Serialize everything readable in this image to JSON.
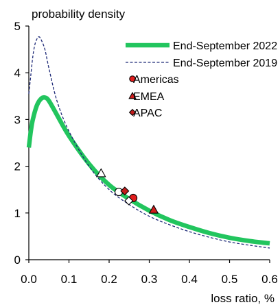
{
  "colors": {
    "series_2022": "#22c55e",
    "series_2019": "#1e2a78",
    "americas": "#e11d1d",
    "emea": "#d01c1c",
    "apac": "#c21c1c",
    "hollow": "#ffffff",
    "axis": "#000000"
  },
  "chart_data": {
    "type": "line",
    "title": "",
    "ylabel": "probability density",
    "xlabel": "loss ratio, %",
    "xlim": [
      0.0,
      0.6
    ],
    "ylim": [
      0,
      5
    ],
    "xticks": [
      0.0,
      0.1,
      0.2,
      0.3,
      0.4,
      0.5,
      0.6
    ],
    "xtick_labels": [
      "0.0",
      "0.1",
      "0.2",
      "0.3",
      "0.4",
      "0.5",
      "0.6"
    ],
    "yticks": [
      0,
      1,
      2,
      3,
      4,
      5
    ],
    "ytick_labels": [
      "0",
      "1",
      "2",
      "3",
      "4",
      "5"
    ],
    "grid": false,
    "legend_position": "top-right",
    "series": [
      {
        "name": "End-September 2022",
        "style": "thick-solid",
        "color_key": "series_2022",
        "x": [
          0.0,
          0.005,
          0.01,
          0.02,
          0.03,
          0.04,
          0.05,
          0.07,
          0.1,
          0.15,
          0.2,
          0.25,
          0.3,
          0.35,
          0.4,
          0.45,
          0.5,
          0.55,
          0.6
        ],
        "y": [
          2.4,
          2.75,
          3.0,
          3.3,
          3.44,
          3.47,
          3.4,
          3.1,
          2.65,
          2.05,
          1.6,
          1.3,
          1.05,
          0.85,
          0.7,
          0.57,
          0.47,
          0.4,
          0.35
        ]
      },
      {
        "name": "End-September 2019",
        "style": "dashed",
        "color_key": "series_2019",
        "x": [
          0.0,
          0.005,
          0.01,
          0.015,
          0.02,
          0.025,
          0.03,
          0.04,
          0.05,
          0.07,
          0.1,
          0.15,
          0.2,
          0.25,
          0.3,
          0.35,
          0.4,
          0.45,
          0.5,
          0.55,
          0.6
        ],
        "y": [
          3.55,
          3.95,
          4.35,
          4.6,
          4.72,
          4.77,
          4.72,
          4.5,
          4.1,
          3.4,
          2.75,
          2.0,
          1.5,
          1.18,
          0.93,
          0.75,
          0.6,
          0.48,
          0.38,
          0.31,
          0.25
        ]
      }
    ],
    "markers": [
      {
        "name": "Americas",
        "shape": "circle",
        "x": 0.26,
        "y": 1.32,
        "filled": true,
        "color_key": "americas"
      },
      {
        "name": "Americas",
        "shape": "circle",
        "x": 0.224,
        "y": 1.45,
        "filled": false,
        "color_key": "hollow"
      },
      {
        "name": "EMEA",
        "shape": "triangle",
        "x": 0.311,
        "y": 1.07,
        "filled": true,
        "color_key": "emea"
      },
      {
        "name": "EMEA",
        "shape": "triangle",
        "x": 0.18,
        "y": 1.85,
        "filled": false,
        "color_key": "hollow"
      },
      {
        "name": "APAC",
        "shape": "diamond",
        "x": 0.239,
        "y": 1.47,
        "filled": true,
        "color_key": "apac"
      },
      {
        "name": "APAC",
        "shape": "diamond",
        "x": 0.249,
        "y": 1.26,
        "filled": false,
        "color_key": "hollow"
      }
    ],
    "legend": [
      {
        "label": "End-September 2022",
        "kind": "line-thick"
      },
      {
        "label": "End-September 2019",
        "kind": "line-dashed"
      },
      {
        "label": "Americas",
        "kind": "circle"
      },
      {
        "label": "EMEA",
        "kind": "triangle"
      },
      {
        "label": "APAC",
        "kind": "diamond"
      }
    ]
  }
}
